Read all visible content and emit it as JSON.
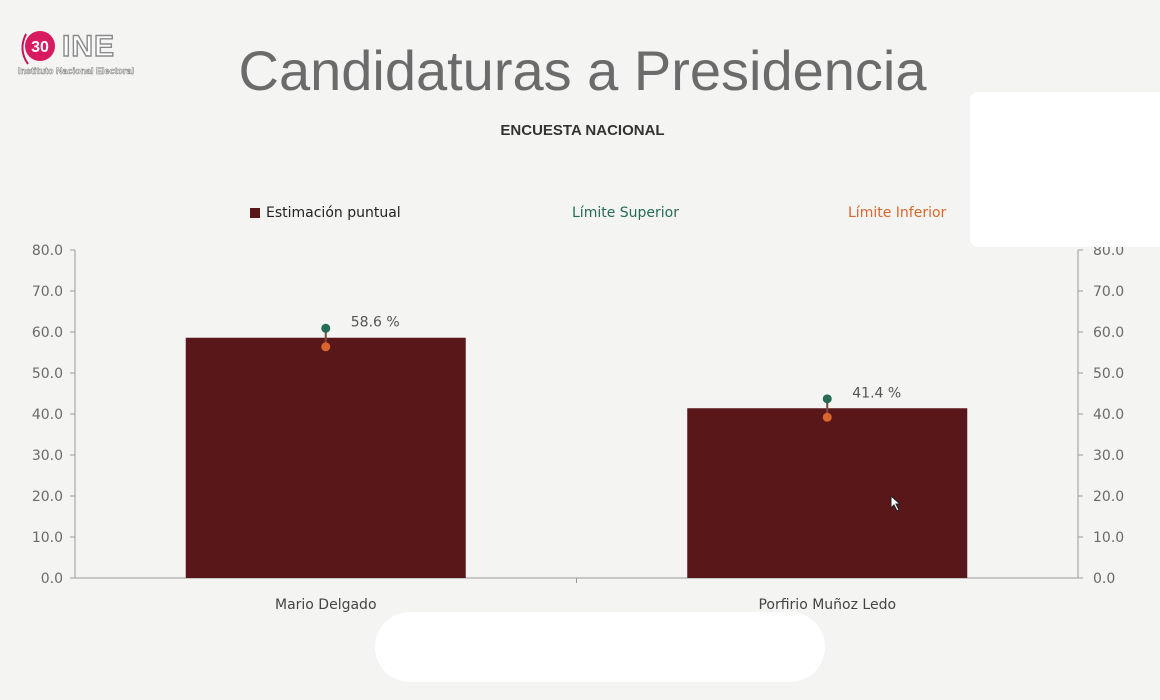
{
  "header": {
    "logo_badge": "30",
    "logo_text": "INE",
    "logo_subtext": "Instituto Nacional Electoral",
    "title": "Candidaturas a Presidencia"
  },
  "chart_data": {
    "type": "bar",
    "title": "ENCUESTA NACIONAL",
    "categories": [
      "Mario Delgado",
      "Porfirio Muñoz Ledo"
    ],
    "series": [
      {
        "name": "Estimación puntual",
        "values": [
          58.6,
          41.4
        ],
        "color": "#5a1719"
      },
      {
        "name": "Límite Superior",
        "values": [
          60.9,
          43.7
        ],
        "color": "#256b55"
      },
      {
        "name": "Límite Inferior",
        "values": [
          56.4,
          39.2
        ],
        "color": "#d9662c"
      }
    ],
    "data_labels": [
      "58.6 %",
      "41.4 %"
    ],
    "y_ticks": [
      "0.0",
      "10.0",
      "20.0",
      "30.0",
      "40.0",
      "50.0",
      "60.0",
      "70.0",
      "80.0"
    ],
    "ylim": [
      0,
      80
    ],
    "grid": false,
    "legend_position": "top",
    "secondary_y_axis": true
  }
}
